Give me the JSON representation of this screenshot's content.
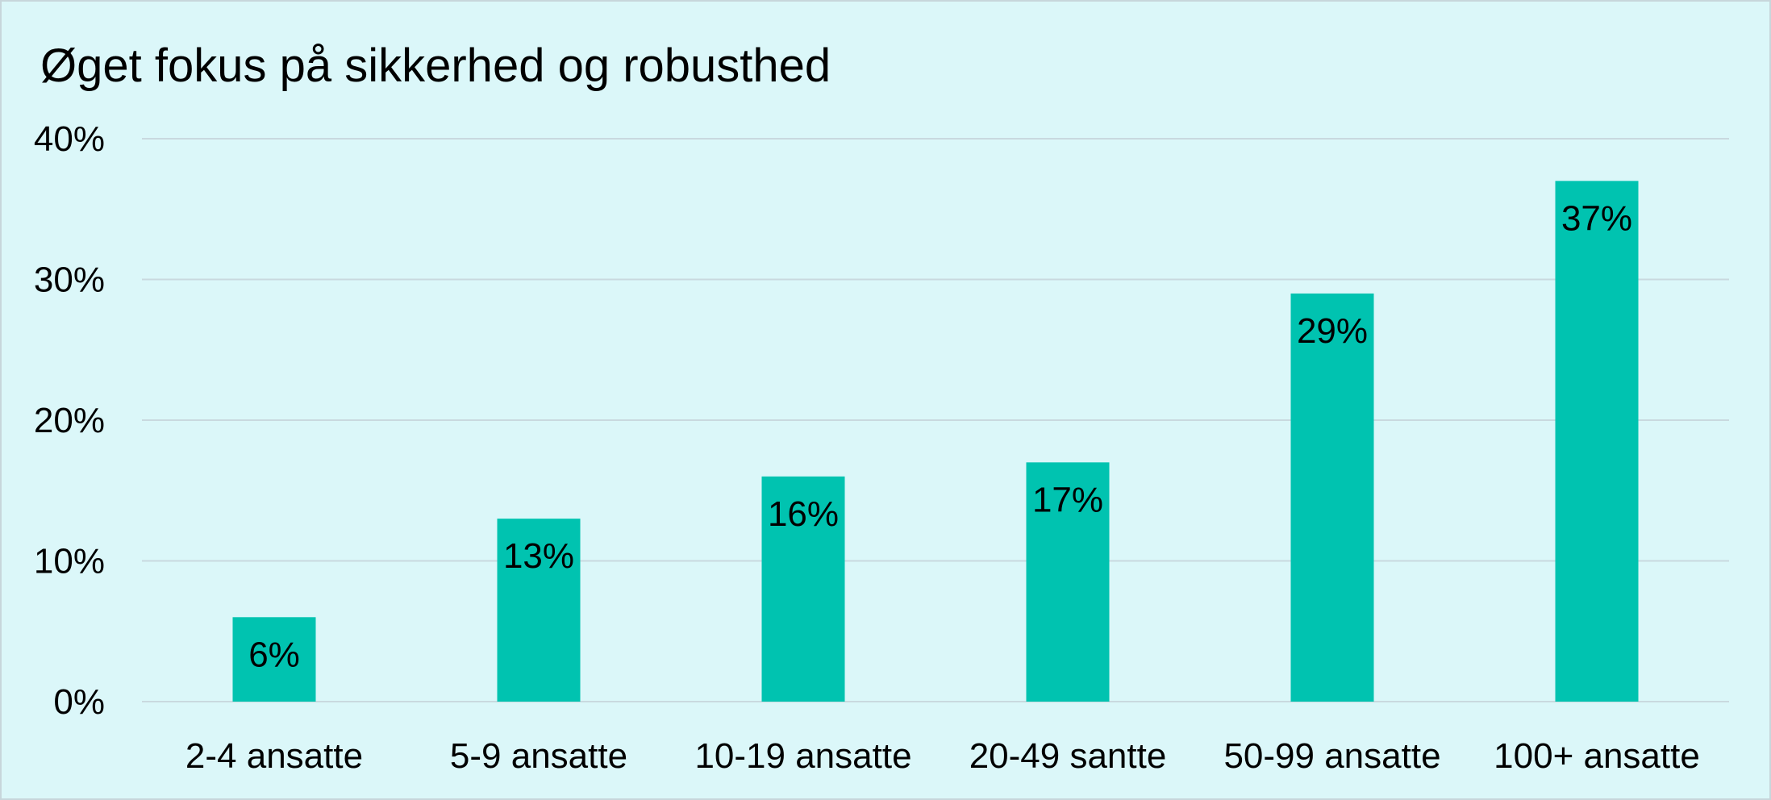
{
  "chart_data": {
    "type": "bar",
    "title": "Øget fokus på sikkerhed og robusthed",
    "categories": [
      "2-4 ansatte",
      "5-9 ansatte",
      "10-19 ansatte",
      "20-49 santte",
      "50-99 ansatte",
      "100+ ansatte"
    ],
    "values": [
      6,
      13,
      16,
      17,
      29,
      37
    ],
    "value_labels": [
      "6%",
      "13%",
      "16%",
      "17%",
      "29%",
      "37%"
    ],
    "yticks": [
      "0%",
      "10%",
      "20%",
      "30%",
      "40%"
    ],
    "ylim": [
      0,
      40
    ],
    "xlabel": "",
    "ylabel": "",
    "grid": true,
    "legend": "none",
    "colors": {
      "bar": "#00c3b0",
      "gridline": "#c9d9df",
      "background": "#dbf7f9"
    }
  }
}
